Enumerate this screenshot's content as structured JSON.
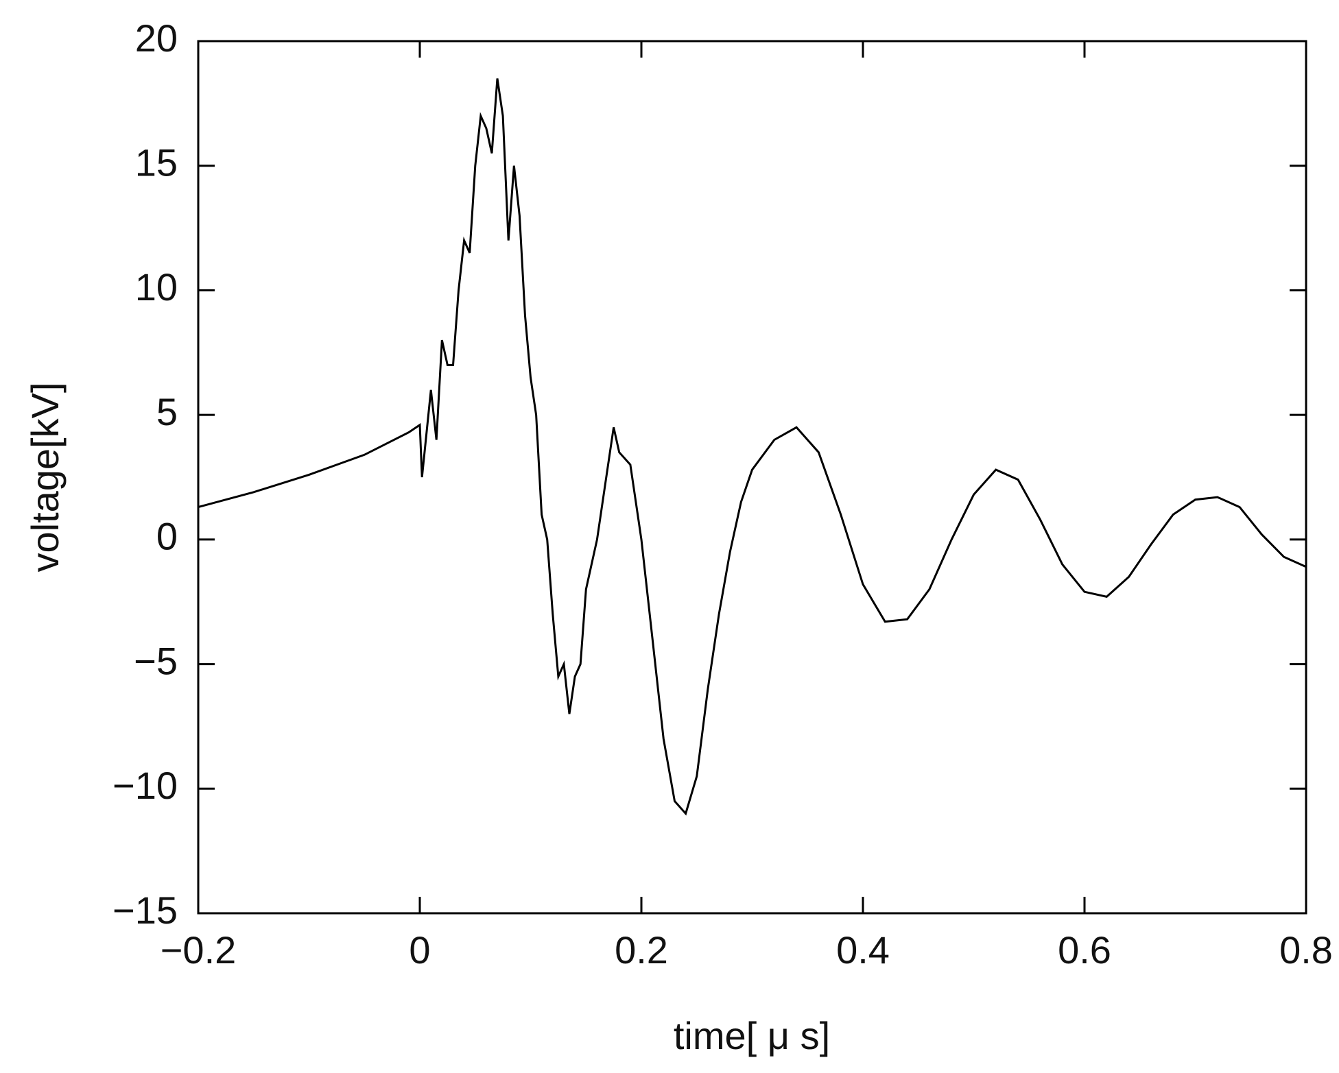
{
  "chart_data": {
    "type": "line",
    "xlabel": "time[ μ s]",
    "ylabel": "voltage[kV]",
    "x": [
      -0.2,
      -0.15,
      -0.1,
      -0.05,
      -0.01,
      0,
      0.002,
      0.01,
      0.015,
      0.02,
      0.025,
      0.03,
      0.035,
      0.04,
      0.045,
      0.05,
      0.055,
      0.06,
      0.065,
      0.07,
      0.075,
      0.08,
      0.085,
      0.09,
      0.095,
      0.1,
      0.105,
      0.11,
      0.115,
      0.12,
      0.125,
      0.13,
      0.135,
      0.14,
      0.145,
      0.15,
      0.16,
      0.17,
      0.175,
      0.18,
      0.19,
      0.2,
      0.21,
      0.22,
      0.23,
      0.24,
      0.25,
      0.26,
      0.27,
      0.28,
      0.29,
      0.3,
      0.32,
      0.34,
      0.36,
      0.38,
      0.4,
      0.42,
      0.44,
      0.46,
      0.48,
      0.5,
      0.52,
      0.54,
      0.56,
      0.58,
      0.6,
      0.62,
      0.64,
      0.66,
      0.68,
      0.7,
      0.72,
      0.74,
      0.76,
      0.78,
      0.8
    ],
    "series": [
      {
        "color": "#000000",
        "values": [
          1.3,
          1.9,
          2.6,
          3.4,
          4.3,
          4.6,
          2.5,
          6,
          4,
          8,
          7,
          7,
          10,
          12,
          11.5,
          15,
          17,
          16.5,
          15.5,
          18.5,
          17,
          12,
          15,
          13,
          9,
          6.5,
          5,
          1,
          0,
          -3,
          -5.5,
          -5,
          -7,
          -5.5,
          -5,
          -2,
          0,
          3,
          4.5,
          3.5,
          3,
          0,
          -4,
          -8,
          -10.5,
          -11,
          -9.5,
          -6,
          -3,
          -0.5,
          1.5,
          2.8,
          4,
          4.5,
          3.5,
          1,
          -1.8,
          -3.3,
          -3.2,
          -2,
          0,
          1.8,
          2.8,
          2.4,
          0.8,
          -1,
          -2.1,
          -2.3,
          -1.5,
          -0.2,
          1,
          1.6,
          1.7,
          1.3,
          0.2,
          -0.7,
          -1.1
        ]
      }
    ],
    "xlim": [
      -0.2,
      0.8
    ],
    "xticks": [
      {
        "value": -0.2,
        "label": "−0.2"
      },
      0,
      0.2,
      0.4,
      0.6,
      0.8
    ],
    "ylim": [
      -15,
      20
    ],
    "yticks": [
      {
        "value": -15,
        "label": "−15"
      },
      {
        "value": -10,
        "label": "−10"
      },
      {
        "value": -5,
        "label": "−5"
      },
      0,
      5,
      10,
      15,
      20
    ],
    "grid": false
  }
}
